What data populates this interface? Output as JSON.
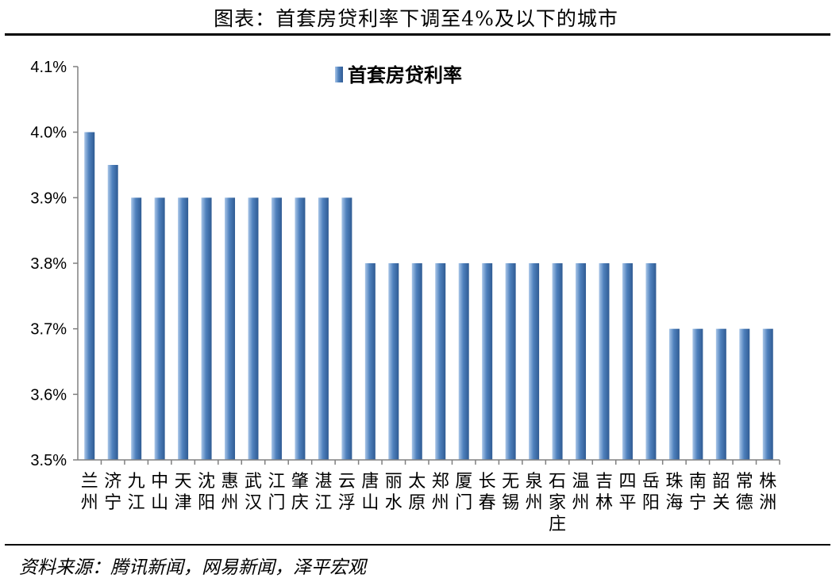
{
  "title": "图表：首套房贷利率下调至4%及以下的城市",
  "source": "资料来源：腾讯新闻，网易新闻，泽平宏观",
  "colors": {
    "bar_light": "#a9c6e8",
    "bar_mid": "#4f81bd",
    "bar_dark": "#2f5b93",
    "axis": "#808080",
    "text": "#000000"
  },
  "chart_data": {
    "type": "bar",
    "ylim": [
      3.5,
      4.1
    ],
    "y_tick_labels": [
      "4.1%",
      "4.0%",
      "3.9%",
      "3.8%",
      "3.7%",
      "3.6%",
      "3.5%"
    ],
    "grid": false,
    "legend_position": "top-center",
    "categories": [
      "兰州",
      "济宁",
      "九江",
      "中山",
      "天津",
      "沈阳",
      "惠州",
      "武汉",
      "江门",
      "肇庆",
      "湛江",
      "云浮",
      "唐山",
      "丽水",
      "太原",
      "郑州",
      "厦门",
      "长春",
      "无锡",
      "泉州",
      "石家庄",
      "温州",
      "吉林",
      "四平",
      "岳阳",
      "珠海",
      "南宁",
      "韶关",
      "常德",
      "株洲"
    ],
    "series": [
      {
        "name": "首套房贷利率",
        "values": [
          4.0,
          3.95,
          3.9,
          3.9,
          3.9,
          3.9,
          3.9,
          3.9,
          3.9,
          3.9,
          3.9,
          3.9,
          3.8,
          3.8,
          3.8,
          3.8,
          3.8,
          3.8,
          3.8,
          3.8,
          3.8,
          3.8,
          3.8,
          3.8,
          3.8,
          3.7,
          3.7,
          3.7,
          3.7,
          3.7
        ]
      }
    ]
  }
}
